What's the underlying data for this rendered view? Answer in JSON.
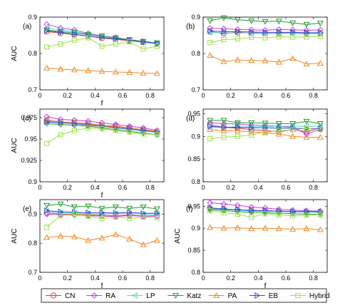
{
  "legend": [
    {
      "name": "CN",
      "color": "#e8372d",
      "marker": "circle"
    },
    {
      "name": "RA",
      "color": "#c63ae6",
      "marker": "diamond"
    },
    {
      "name": "LP",
      "color": "#5ad7d2",
      "marker": "triangle-left"
    },
    {
      "name": "Katz",
      "color": "#1f9e2c",
      "marker": "triangle-down"
    },
    {
      "name": "PA",
      "color": "#f08a24",
      "marker": "triangle-up"
    },
    {
      "name": "EB",
      "color": "#2f4fd9",
      "marker": "triangle-right"
    },
    {
      "name": "Hybrid",
      "color": "#9ee04a",
      "marker": "square"
    }
  ],
  "chart_data": [
    {
      "type": "line",
      "panel": "(a)",
      "xlabel": "f",
      "ylabel": "AUC",
      "xlim": [
        0,
        0.9
      ],
      "ylim": [
        0.7,
        0.9
      ],
      "xticks": [
        "0",
        "0.2",
        "0.4",
        "0.6",
        "0.8"
      ],
      "yticks": [
        "0.7",
        "0.8",
        "0.9"
      ],
      "x": [
        0.05,
        0.15,
        0.25,
        0.35,
        0.45,
        0.55,
        0.65,
        0.75,
        0.85
      ],
      "series": [
        {
          "name": "CN",
          "values": [
            0.86,
            0.856,
            0.852,
            0.848,
            0.842,
            0.839,
            0.835,
            0.831,
            0.827
          ]
        },
        {
          "name": "RA",
          "values": [
            0.88,
            0.87,
            0.865,
            0.855,
            0.848,
            0.844,
            0.838,
            0.833,
            0.828
          ]
        },
        {
          "name": "LP",
          "values": [
            0.87,
            0.865,
            0.86,
            0.853,
            0.847,
            0.842,
            0.836,
            0.831,
            0.826
          ]
        },
        {
          "name": "Katz",
          "values": [
            0.865,
            0.86,
            0.857,
            0.852,
            0.848,
            0.843,
            0.838,
            0.833,
            0.829
          ]
        },
        {
          "name": "PA",
          "values": [
            0.76,
            0.757,
            0.755,
            0.753,
            0.751,
            0.749,
            0.748,
            0.746,
            0.745
          ]
        },
        {
          "name": "EB",
          "values": [
            0.862,
            0.858,
            0.853,
            0.848,
            0.844,
            0.84,
            0.836,
            0.832,
            0.828
          ]
        },
        {
          "name": "Hybrid",
          "values": [
            0.818,
            0.826,
            0.836,
            0.843,
            0.82,
            0.826,
            0.832,
            0.812,
            0.82
          ]
        }
      ]
    },
    {
      "type": "line",
      "panel": "(b)",
      "xlabel": "",
      "ylabel": "",
      "xlim": [
        0,
        0.9
      ],
      "ylim": [
        0.7,
        0.9
      ],
      "xticks": [
        "0",
        "0.2",
        "0.4",
        "0.6",
        "0.8"
      ],
      "yticks": [
        "0.7",
        "0.8",
        "0.9"
      ],
      "x": [
        0.05,
        0.15,
        0.25,
        0.35,
        0.45,
        0.55,
        0.65,
        0.75,
        0.85
      ],
      "series": [
        {
          "name": "CN",
          "values": [
            0.86,
            0.855,
            0.858,
            0.856,
            0.855,
            0.856,
            0.857,
            0.855,
            0.856
          ]
        },
        {
          "name": "RA",
          "values": [
            0.87,
            0.868,
            0.866,
            0.865,
            0.864,
            0.866,
            0.865,
            0.864,
            0.865
          ]
        },
        {
          "name": "LP",
          "values": [
            0.858,
            0.857,
            0.856,
            0.857,
            0.856,
            0.855,
            0.856,
            0.854,
            0.855
          ]
        },
        {
          "name": "Katz",
          "values": [
            0.89,
            0.898,
            0.893,
            0.89,
            0.888,
            0.889,
            0.884,
            0.88,
            0.883
          ]
        },
        {
          "name": "PA",
          "values": [
            0.795,
            0.778,
            0.782,
            0.781,
            0.78,
            0.776,
            0.786,
            0.771,
            0.773
          ]
        },
        {
          "name": "EB",
          "values": [
            0.862,
            0.86,
            0.86,
            0.859,
            0.858,
            0.858,
            0.858,
            0.857,
            0.857
          ]
        },
        {
          "name": "Hybrid",
          "values": [
            0.83,
            0.838,
            0.84,
            0.844,
            0.843,
            0.846,
            0.845,
            0.845,
            0.847
          ]
        }
      ]
    },
    {
      "type": "line",
      "panel": "(c)",
      "xlabel": "f",
      "ylabel": "AUC",
      "xlim": [
        0,
        0.9
      ],
      "ylim": [
        0.9,
        0.985
      ],
      "xticks": [
        "0",
        "0.2",
        "0.4",
        "0.6",
        "0.8"
      ],
      "yticks": [
        "0.9",
        "0.925",
        "0.95",
        "0.975"
      ],
      "x": [
        0.05,
        0.15,
        0.25,
        0.35,
        0.45,
        0.55,
        0.65,
        0.75,
        0.85
      ],
      "series": [
        {
          "name": "CN",
          "values": [
            0.972,
            0.97,
            0.969,
            0.968,
            0.966,
            0.965,
            0.963,
            0.961,
            0.959
          ]
        },
        {
          "name": "RA",
          "values": [
            0.976,
            0.973,
            0.972,
            0.971,
            0.969,
            0.967,
            0.965,
            0.963,
            0.96
          ]
        },
        {
          "name": "LP",
          "values": [
            0.97,
            0.969,
            0.968,
            0.967,
            0.965,
            0.963,
            0.961,
            0.959,
            0.958
          ]
        },
        {
          "name": "Katz",
          "values": [
            0.968,
            0.967,
            0.966,
            0.965,
            0.963,
            0.961,
            0.959,
            0.957,
            0.955
          ]
        },
        {
          "name": "PA",
          "values": [
            0.971,
            0.97,
            0.969,
            0.967,
            0.966,
            0.964,
            0.963,
            0.961,
            0.959
          ]
        },
        {
          "name": "EB",
          "values": [
            0.97,
            0.969,
            0.968,
            0.966,
            0.965,
            0.963,
            0.962,
            0.96,
            0.958
          ]
        },
        {
          "name": "Hybrid",
          "values": [
            0.945,
            0.955,
            0.96,
            0.963,
            0.962,
            0.96,
            0.958,
            0.956,
            0.955
          ]
        }
      ]
    },
    {
      "type": "line",
      "panel": "(d)",
      "xlabel": "",
      "ylabel": "",
      "xlim": [
        0,
        0.9
      ],
      "ylim": [
        0.8,
        0.96
      ],
      "xticks": [
        "0",
        "0.2",
        "0.4",
        "0.6",
        "0.8"
      ],
      "yticks": [
        "0.8",
        "0.85",
        "0.9",
        "0.95"
      ],
      "x": [
        0.05,
        0.15,
        0.25,
        0.35,
        0.45,
        0.55,
        0.65,
        0.75,
        0.85
      ],
      "series": [
        {
          "name": "CN",
          "values": [
            0.925,
            0.92,
            0.918,
            0.915,
            0.913,
            0.91,
            0.915,
            0.91,
            0.918
          ]
        },
        {
          "name": "RA",
          "values": [
            0.93,
            0.928,
            0.927,
            0.925,
            0.924,
            0.922,
            0.92,
            0.905,
            0.915
          ]
        },
        {
          "name": "LP",
          "values": [
            0.92,
            0.92,
            0.921,
            0.921,
            0.922,
            0.922,
            0.923,
            0.922,
            0.922
          ]
        },
        {
          "name": "Katz",
          "values": [
            0.935,
            0.935,
            0.93,
            0.93,
            0.929,
            0.928,
            0.928,
            0.933,
            0.928
          ]
        },
        {
          "name": "PA",
          "values": [
            0.915,
            0.912,
            0.912,
            0.91,
            0.908,
            0.905,
            0.9,
            0.898,
            0.898
          ]
        },
        {
          "name": "EB",
          "values": [
            0.922,
            0.92,
            0.92,
            0.919,
            0.919,
            0.918,
            0.918,
            0.917,
            0.917
          ]
        },
        {
          "name": "Hybrid",
          "values": [
            0.895,
            0.898,
            0.9,
            0.903,
            0.91,
            0.912,
            0.915,
            0.917,
            0.915
          ]
        }
      ]
    },
    {
      "type": "line",
      "panel": "(e)",
      "xlabel": "f",
      "ylabel": "AUC",
      "xlim": [
        0,
        0.9
      ],
      "ylim": [
        0.7,
        0.95
      ],
      "xticks": [
        "0",
        "0.2",
        "0.4",
        "0.6",
        "0.8"
      ],
      "yticks": [
        "0.7",
        "0.8",
        "0.9"
      ],
      "x": [
        0.05,
        0.15,
        0.25,
        0.35,
        0.45,
        0.55,
        0.65,
        0.75,
        0.85
      ],
      "series": [
        {
          "name": "CN",
          "values": [
            0.905,
            0.9,
            0.9,
            0.898,
            0.896,
            0.895,
            0.897,
            0.894,
            0.895
          ]
        },
        {
          "name": "RA",
          "values": [
            0.9,
            0.898,
            0.897,
            0.895,
            0.893,
            0.892,
            0.895,
            0.893,
            0.893
          ]
        },
        {
          "name": "LP",
          "values": [
            0.91,
            0.905,
            0.904,
            0.902,
            0.9,
            0.903,
            0.902,
            0.9,
            0.901
          ]
        },
        {
          "name": "Katz",
          "values": [
            0.93,
            0.935,
            0.925,
            0.928,
            0.92,
            0.925,
            0.92,
            0.925,
            0.918
          ]
        },
        {
          "name": "PA",
          "values": [
            0.82,
            0.825,
            0.822,
            0.81,
            0.818,
            0.83,
            0.815,
            0.795,
            0.81
          ]
        },
        {
          "name": "EB",
          "values": [
            0.912,
            0.908,
            0.907,
            0.905,
            0.905,
            0.904,
            0.906,
            0.903,
            0.903
          ]
        },
        {
          "name": "Hybrid",
          "values": [
            0.855,
            0.895,
            0.9,
            0.893,
            0.885,
            0.89,
            0.885,
            0.89,
            0.888
          ]
        }
      ]
    },
    {
      "type": "line",
      "panel": "(f)",
      "xlabel": "f",
      "ylabel": "AUC",
      "xlim": [
        0,
        0.9
      ],
      "ylim": [
        0.8,
        0.965
      ],
      "xticks": [
        "0",
        "0.2",
        "0.4",
        "0.6",
        "0.8"
      ],
      "yticks": [
        "0.8",
        "0.85",
        "0.9",
        "0.95"
      ],
      "x": [
        0.05,
        0.15,
        0.25,
        0.35,
        0.45,
        0.55,
        0.65,
        0.75,
        0.85
      ],
      "series": [
        {
          "name": "CN",
          "values": [
            0.945,
            0.943,
            0.942,
            0.94,
            0.939,
            0.939,
            0.938,
            0.938,
            0.937
          ]
        },
        {
          "name": "RA",
          "values": [
            0.958,
            0.955,
            0.952,
            0.948,
            0.946,
            0.943,
            0.941,
            0.94,
            0.939
          ]
        },
        {
          "name": "LP",
          "values": [
            0.944,
            0.942,
            0.941,
            0.939,
            0.938,
            0.938,
            0.937,
            0.937,
            0.936
          ]
        },
        {
          "name": "Katz",
          "values": [
            0.942,
            0.94,
            0.938,
            0.936,
            0.935,
            0.934,
            0.933,
            0.932,
            0.932
          ]
        },
        {
          "name": "PA",
          "values": [
            0.902,
            0.9,
            0.901,
            0.899,
            0.9,
            0.899,
            0.898,
            0.899,
            0.897
          ]
        },
        {
          "name": "EB",
          "values": [
            0.946,
            0.944,
            0.942,
            0.941,
            0.94,
            0.939,
            0.938,
            0.938,
            0.937
          ]
        },
        {
          "name": "Hybrid",
          "values": [
            0.94,
            0.935,
            0.932,
            0.925,
            0.933,
            0.93,
            0.928,
            0.93,
            0.931
          ]
        }
      ]
    }
  ]
}
